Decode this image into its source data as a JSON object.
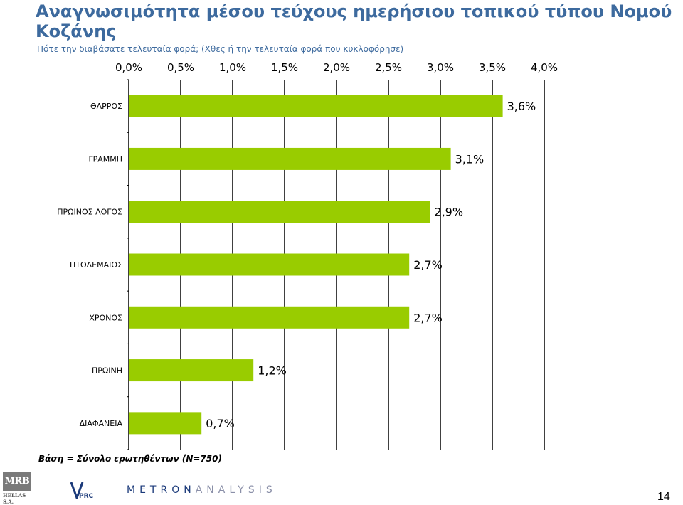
{
  "header": {
    "title": "Αναγνωσιμότητα μέσου τεύχους ημερήσιου τοπικού τύπου Νομού Κοζάνης",
    "subtitle": "Πότε την διαβάσατε τελευταία φορά; (Χθες ή την τελευταία φορά που κυκλοφόρησε)"
  },
  "chart_data": {
    "type": "bar",
    "orientation": "horizontal",
    "categories": [
      "ΘΑΡΡΟΣ",
      "ΓΡΑΜΜΗ",
      "ΠΡΩΙΝΟΣ ΛΟΓΟΣ",
      "ΠΤΟΛΕΜΑΙΟΣ",
      "ΧΡΟΝΟΣ",
      "ΠΡΩΙΝΗ",
      "ΔΙΑΦΑΝΕΙΑ"
    ],
    "values": [
      3.6,
      3.1,
      2.9,
      2.7,
      2.7,
      1.2,
      0.7
    ],
    "data_labels": [
      "3,6%",
      "3,1%",
      "2,9%",
      "2,7%",
      "2,7%",
      "1,2%",
      "0,7%"
    ],
    "x_ticks": [
      "0,0%",
      "0,5%",
      "1,0%",
      "1,5%",
      "2,0%",
      "2,5%",
      "3,0%",
      "3,5%",
      "4,0%"
    ],
    "xlim": [
      0,
      4
    ],
    "x_axis_position": "top",
    "grid": true,
    "bar_color": "#99cc00",
    "grid_color": "#000000"
  },
  "footnote": "Βάση = Σύνολο ερωτηθέντων (Ν=750)",
  "logos": {
    "mrb": "MRB",
    "mrb_sub": "HELLAS S.A.",
    "vprc": "VPRC",
    "metron_part1": "METRON",
    "metron_part2": "ANALYSIS"
  },
  "page_number": "14"
}
